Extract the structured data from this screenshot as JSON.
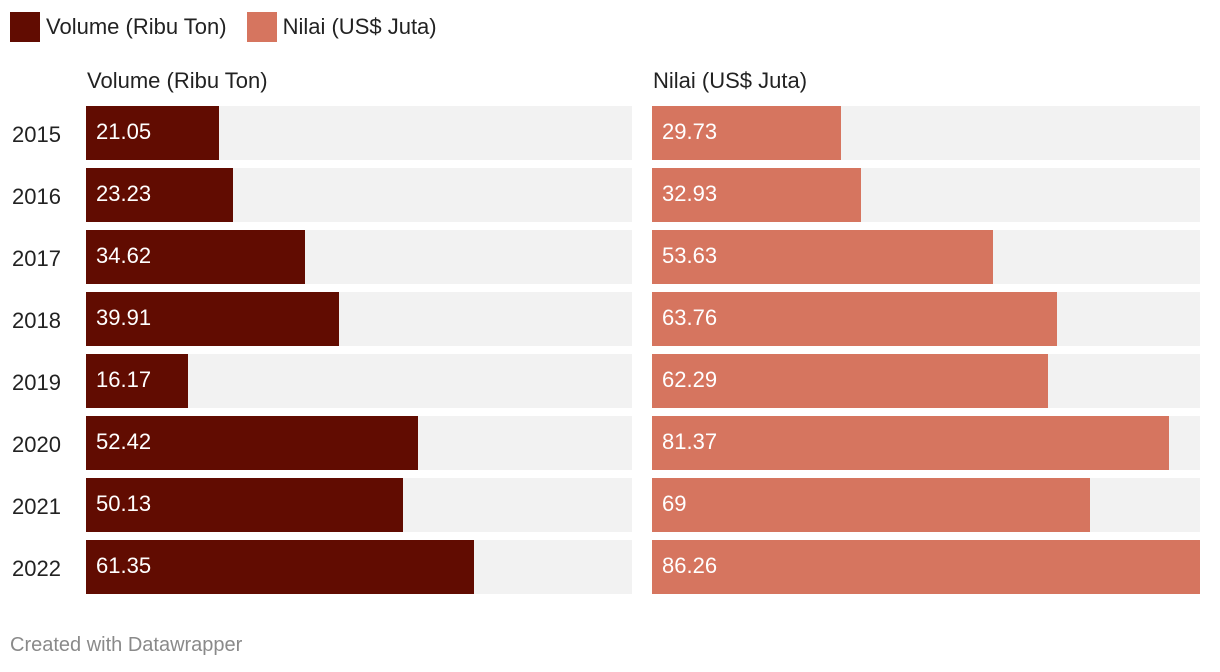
{
  "chart_data": {
    "type": "bar",
    "orientation": "horizontal",
    "categories": [
      "2015",
      "2016",
      "2017",
      "2018",
      "2019",
      "2020",
      "2021",
      "2022"
    ],
    "series": [
      {
        "name": "Volume (Ribu Ton)",
        "color": "#610c01",
        "values": [
          21.05,
          23.23,
          34.62,
          39.91,
          16.17,
          52.42,
          50.13,
          61.35
        ],
        "labels": [
          "21.05",
          "23.23",
          "34.62",
          "39.91",
          "16.17",
          "52.42",
          "50.13",
          "61.35"
        ],
        "xlim": [
          0,
          86.26
        ]
      },
      {
        "name": "Nilai (US$ Juta)",
        "color": "#d6755f",
        "values": [
          29.73,
          32.93,
          53.63,
          63.76,
          62.29,
          81.37,
          69,
          86.26
        ],
        "labels": [
          "29.73",
          "32.93",
          "53.63",
          "63.76",
          "62.29",
          "81.37",
          "69",
          "86.26"
        ],
        "xlim": [
          0,
          86.26
        ]
      }
    ],
    "legend": [
      "Volume (Ribu Ton)",
      "Nilai (US$ Juta)"
    ],
    "legend_position": "top-left"
  },
  "footer": {
    "credit": "Created with Datawrapper"
  }
}
